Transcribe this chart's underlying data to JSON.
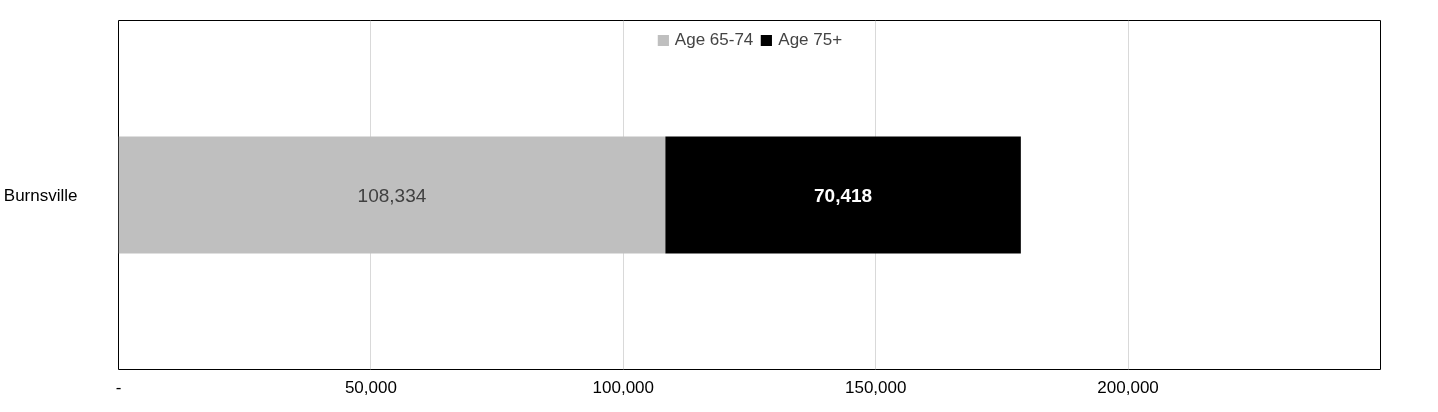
{
  "chart_data": {
    "type": "bar",
    "orientation": "horizontal",
    "stacked": true,
    "categories": [
      "Burnsville"
    ],
    "series": [
      {
        "name": "Age 65-74",
        "color": "#bfbfbf",
        "values": [
          108334
        ],
        "value_labels": [
          "108,334"
        ]
      },
      {
        "name": "Age 75+",
        "color": "#000000",
        "values": [
          70418
        ],
        "value_labels": [
          "70,418"
        ]
      }
    ],
    "xlim": [
      0,
      250000
    ],
    "xticks": [
      {
        "value": 0,
        "label": "-"
      },
      {
        "value": 50000,
        "label": "50,000"
      },
      {
        "value": 100000,
        "label": "100,000"
      },
      {
        "value": 150000,
        "label": "150,000"
      },
      {
        "value": 200000,
        "label": "200,000"
      }
    ],
    "grid": "x",
    "legend": "top"
  }
}
